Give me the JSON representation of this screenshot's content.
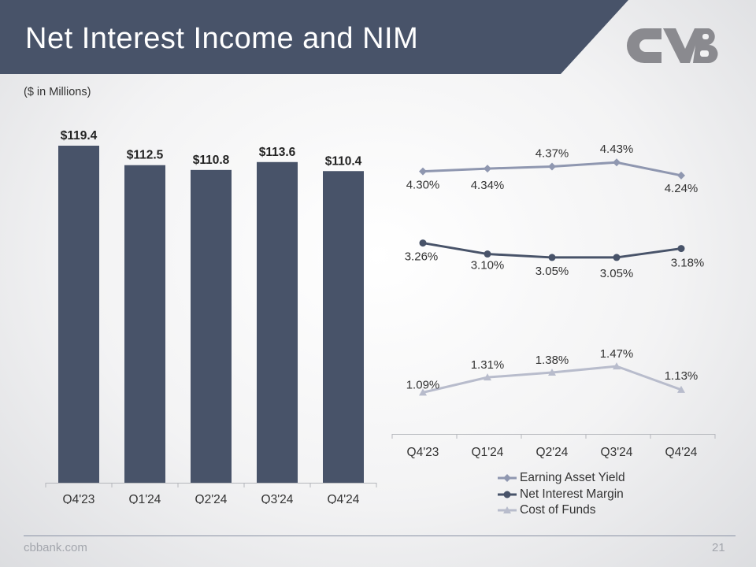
{
  "header": {
    "title": "Net Interest Income and NIM",
    "units_note": "($ in Millions)"
  },
  "footer": {
    "url": "cbbank.com",
    "page_number": "21"
  },
  "colors": {
    "banner": "#485369",
    "bar": "#485369",
    "eay": "#8f97b0",
    "nim": "#485369",
    "cof": "#b8bccc",
    "logo": "#8a8a8f"
  },
  "icons": {
    "logo": "cvb-logo"
  },
  "chart_data": [
    {
      "type": "bar",
      "categories": [
        "Q4'23",
        "Q1'24",
        "Q2'24",
        "Q3'24",
        "Q4'24"
      ],
      "values": [
        119.4,
        112.5,
        110.8,
        113.6,
        110.4
      ],
      "data_labels": [
        "$119.4",
        "$112.5",
        "$110.8",
        "$113.6",
        "$110.4"
      ],
      "ylim": [
        0,
        130
      ],
      "grid": false,
      "title": "",
      "xlabel": "",
      "ylabel": ""
    },
    {
      "type": "line",
      "categories": [
        "Q4'23",
        "Q1'24",
        "Q2'24",
        "Q3'24",
        "Q4'24"
      ],
      "ylim": [
        0.5,
        4.7
      ],
      "grid": false,
      "legend": "bottom",
      "series": [
        {
          "name": "Earning Asset Yield",
          "values": [
            4.3,
            4.34,
            4.37,
            4.43,
            4.24
          ],
          "labels": [
            "4.30%",
            "4.34%",
            "4.37%",
            "4.43%",
            "4.24%"
          ],
          "marker": "diamond"
        },
        {
          "name": "Net Interest Margin",
          "values": [
            3.26,
            3.1,
            3.05,
            3.05,
            3.18
          ],
          "labels": [
            "3.26%",
            "3.10%",
            "3.05%",
            "3.05%",
            "3.18%"
          ],
          "marker": "circle"
        },
        {
          "name": "Cost of Funds",
          "values": [
            1.09,
            1.31,
            1.38,
            1.47,
            1.13
          ],
          "labels": [
            "1.09%",
            "1.31%",
            "1.38%",
            "1.47%",
            "1.13%"
          ],
          "marker": "triangle"
        }
      ]
    }
  ]
}
